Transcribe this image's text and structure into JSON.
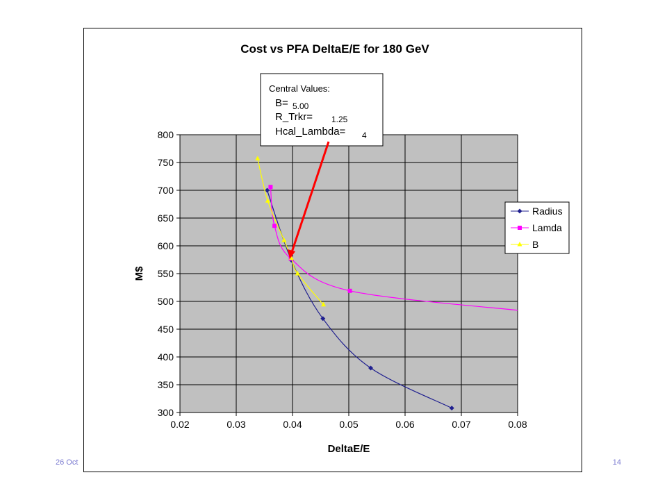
{
  "footer": {
    "date": "26 Oct",
    "page": "14"
  },
  "colors": {
    "plot_bg": "#c0c0c0",
    "radius": "#1f1f8f",
    "lamda": "#ff00ff",
    "b": "#ffff00",
    "arrow": "#ff0000"
  },
  "annotation": {
    "heading": "Central  Values:",
    "lines": [
      {
        "label": "B=",
        "value": "5.00"
      },
      {
        "label": "R_Trkr=",
        "value": "1.25"
      },
      {
        "label": "Hcal_Lambda=",
        "value": "4"
      }
    ]
  },
  "chart_data": {
    "type": "scatter",
    "title": "Cost vs PFA  DeltaE/E for 180 GeV",
    "xlabel": "DeltaE/E",
    "ylabel": "M$",
    "xlim": [
      0.02,
      0.08
    ],
    "ylim": [
      300,
      800
    ],
    "xticks": [
      "0.02",
      "0.03",
      "0.04",
      "0.05",
      "0.06",
      "0.07",
      "0.08"
    ],
    "yticks": [
      "300",
      "350",
      "400",
      "450",
      "500",
      "550",
      "600",
      "650",
      "700",
      "750",
      "800"
    ],
    "grid": true,
    "legend_position": "right",
    "series": [
      {
        "name": "Radius",
        "marker": "diamond",
        "x": [
          0.0355,
          0.0398,
          0.0454,
          0.0539,
          0.0683
        ],
        "y": [
          700,
          574,
          469,
          380,
          308
        ]
      },
      {
        "name": "Lamda",
        "marker": "square",
        "x": [
          0.0361,
          0.0368,
          0.0397,
          0.0502,
          0.082
        ],
        "y": [
          706,
          636,
          577,
          519,
          482
        ]
      },
      {
        "name": "B",
        "marker": "triangle",
        "x": [
          0.0338,
          0.0356,
          0.0385,
          0.0398,
          0.0409,
          0.0455
        ],
        "y": [
          757,
          681,
          610,
          578,
          550,
          494
        ]
      }
    ]
  }
}
